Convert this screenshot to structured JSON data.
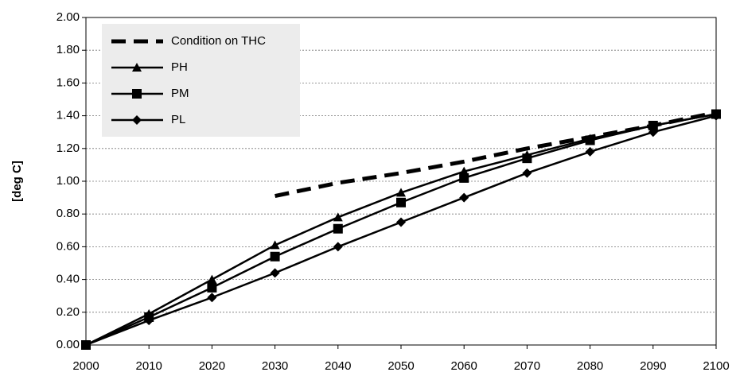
{
  "chart_data": {
    "type": "line",
    "y_label": "[deg C]",
    "x": [
      2000,
      2010,
      2020,
      2030,
      2040,
      2050,
      2060,
      2070,
      2080,
      2090,
      2100
    ],
    "series": [
      {
        "name": "Condition on THC",
        "color": "#000000",
        "dashed": true,
        "marker": "none",
        "values": [
          null,
          null,
          null,
          0.91,
          0.99,
          1.05,
          1.12,
          1.2,
          1.27,
          1.34,
          1.42
        ]
      },
      {
        "name": "PH",
        "color": "#000000",
        "dashed": false,
        "marker": "triangle",
        "values": [
          0,
          0.19,
          0.4,
          0.61,
          0.78,
          0.93,
          1.06,
          1.16,
          1.26,
          1.34,
          1.41
        ]
      },
      {
        "name": "PM",
        "color": "#000000",
        "dashed": false,
        "marker": "square",
        "values": [
          0,
          0.17,
          0.35,
          0.54,
          0.71,
          0.87,
          1.02,
          1.14,
          1.25,
          1.34,
          1.41
        ]
      },
      {
        "name": "PL",
        "color": "#000000",
        "dashed": false,
        "marker": "diamond",
        "values": [
          0,
          0.15,
          0.29,
          0.44,
          0.6,
          0.75,
          0.9,
          1.05,
          1.18,
          1.3,
          1.4
        ]
      }
    ],
    "xlim": [
      2000,
      2100
    ],
    "xticks": [
      2000,
      2010,
      2020,
      2030,
      2040,
      2050,
      2060,
      2070,
      2080,
      2090,
      2100
    ],
    "ylim": [
      0,
      2
    ],
    "yticks": [
      {
        "value": 0,
        "label": "0.00"
      },
      {
        "value": 0.2,
        "label": "0.20"
      },
      {
        "value": 0.4,
        "label": "0.40"
      },
      {
        "value": 0.6,
        "label": "0.60"
      },
      {
        "value": 0.8,
        "label": "0.80"
      },
      {
        "value": 1,
        "label": "1.00"
      },
      {
        "value": 1.2,
        "label": "1.20"
      },
      {
        "value": 1.4,
        "label": "1.40"
      },
      {
        "value": 1.6,
        "label": "1.60"
      },
      {
        "value": 1.8,
        "label": "1.80"
      },
      {
        "value": 2,
        "label": "2.00"
      }
    ],
    "grid": true,
    "legend": "top-left"
  }
}
